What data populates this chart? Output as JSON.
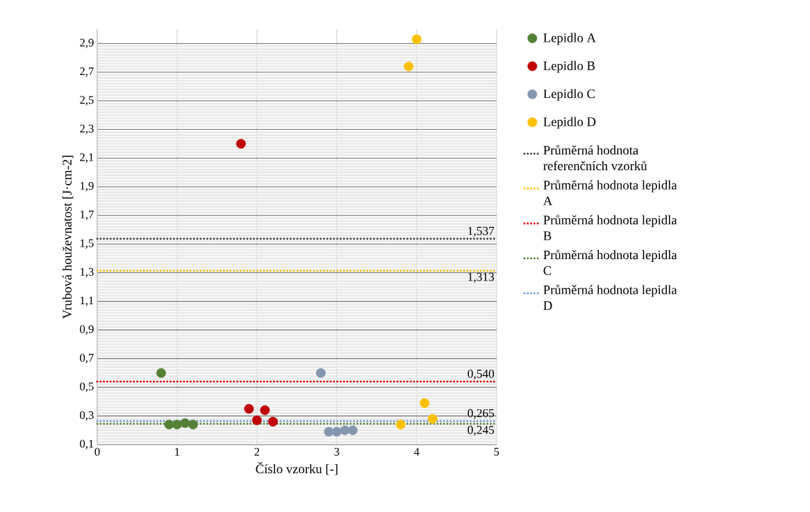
{
  "chart_data": {
    "type": "scatter",
    "xlabel": "Číslo vzorku [-]",
    "ylabel": "Vrubová houževnatost [J·cm-2]",
    "xlim": [
      0,
      5
    ],
    "ylim": [
      0.1,
      3.0
    ],
    "xticks": [
      0,
      1,
      2,
      3,
      4,
      5
    ],
    "yticks": [
      {
        "value": 0.1,
        "label": "0,1"
      },
      {
        "value": 0.3,
        "label": "0,3"
      },
      {
        "value": 0.5,
        "label": "0,5"
      },
      {
        "value": 0.7,
        "label": "0,7"
      },
      {
        "value": 0.9,
        "label": "0,9"
      },
      {
        "value": 1.1,
        "label": "1,1"
      },
      {
        "value": 1.3,
        "label": "1,3"
      },
      {
        "value": 1.5,
        "label": "1,5"
      },
      {
        "value": 1.7,
        "label": "1,7"
      },
      {
        "value": 1.9,
        "label": "1,9"
      },
      {
        "value": 2.1,
        "label": "2,1"
      },
      {
        "value": 2.3,
        "label": "2,3"
      },
      {
        "value": 2.5,
        "label": "2,5"
      },
      {
        "value": 2.7,
        "label": "2,7"
      },
      {
        "value": 2.9,
        "label": "2,9"
      }
    ],
    "grid": true,
    "legend": "right",
    "marker": "circle",
    "series": [
      {
        "name": "Lepidlo A",
        "color": "#548235",
        "x": [
          0.8,
          0.9,
          1.0,
          1.1,
          1.2
        ],
        "values": [
          0.6,
          0.24,
          0.24,
          0.25,
          0.24
        ]
      },
      {
        "name": "Lepidlo B",
        "color": "#c00000",
        "x": [
          1.8,
          1.9,
          2.0,
          2.1,
          2.2
        ],
        "values": [
          2.2,
          0.35,
          0.27,
          0.34,
          0.26
        ]
      },
      {
        "name": "Lepidlo C",
        "color": "#8497b0",
        "x": [
          2.8,
          2.9,
          3.0,
          3.1,
          3.2
        ],
        "values": [
          0.6,
          0.19,
          0.19,
          0.2,
          0.2
        ]
      },
      {
        "name": "Lepidlo D",
        "color": "#ffc000",
        "x": [
          3.8,
          3.9,
          4.0,
          4.1,
          4.2
        ],
        "values": [
          0.24,
          2.74,
          2.93,
          0.39,
          0.28
        ]
      },
      {
        "name": "Průměrná hodnota referenčních vzorků",
        "type": "line",
        "marker": "none",
        "line_style": "dotted",
        "color": "#404040",
        "x": [
          0,
          5
        ],
        "values": [
          1.537,
          1.537
        ],
        "value_labels": [
          null,
          "1,537"
        ]
      },
      {
        "name": "Průměrná hodnota lepidla A",
        "type": "line",
        "marker": "none",
        "line_style": "dotted",
        "color": "#ffc000",
        "x": [
          0,
          5
        ],
        "values": [
          1.313,
          1.313
        ],
        "value_labels": [
          null,
          "1,313"
        ]
      },
      {
        "name": "Průměrná hodnota lepidla B",
        "type": "line",
        "marker": "none",
        "line_style": "dotted",
        "color": "#e00000",
        "x": [
          0,
          5
        ],
        "values": [
          0.54,
          0.54
        ],
        "value_labels": [
          null,
          "0,540"
        ]
      },
      {
        "name": "Průměrná hodnota lepidla C",
        "type": "line",
        "marker": "none",
        "line_style": "dotted",
        "color": "#548235",
        "x": [
          0,
          5
        ],
        "values": [
          0.245,
          0.245
        ],
        "value_labels": [
          null,
          "0,245"
        ]
      },
      {
        "name": "Průměrná hodnota lepidla D",
        "type": "line",
        "marker": "none",
        "line_style": "dotted",
        "color": "#6f9bd8",
        "x": [
          0,
          5
        ],
        "values": [
          0.265,
          0.265
        ],
        "value_labels": [
          null,
          "0,265"
        ]
      }
    ]
  }
}
